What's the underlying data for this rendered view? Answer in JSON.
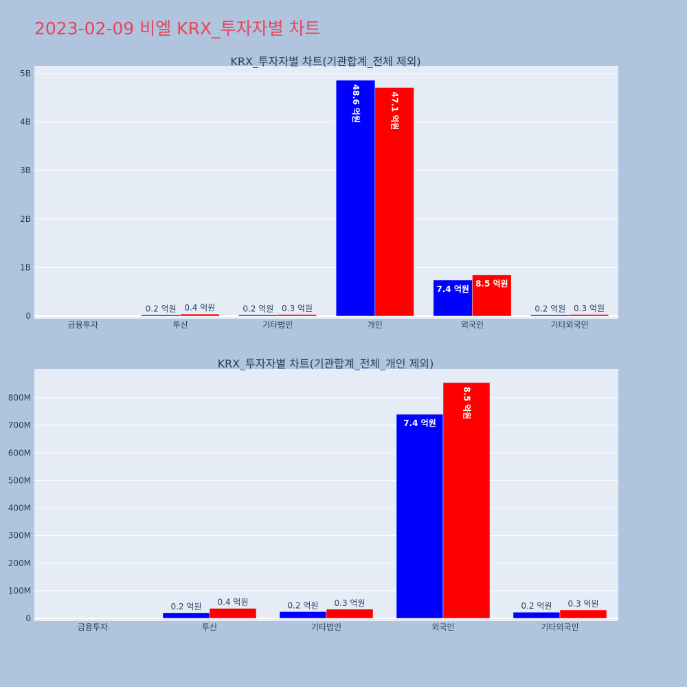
{
  "page": {
    "title": "2023-02-09 비엘 KRX_투자자별 차트"
  },
  "colors": {
    "background": "#b0c4de",
    "plot_background": "#e5ecf6",
    "title": "#e8445a",
    "series_buy": "#0000ff",
    "series_sell": "#ff0000"
  },
  "chart_data": [
    {
      "type": "bar",
      "title": "KRX_투자자별 차트(기관합계_전체 제외)",
      "categories": [
        "금융투자",
        "투신",
        "기타법인",
        "개인",
        "외국인",
        "기타외국인"
      ],
      "series": [
        {
          "color": "#0000ff",
          "values": [
            0,
            20000000,
            20000000,
            4860000000,
            740000000,
            20000000
          ],
          "labels": [
            "",
            "0.2 억원",
            "0.2 억원",
            "48.6 억원",
            "7.4 억원",
            "0.2 억원"
          ]
        },
        {
          "color": "#ff0000",
          "values": [
            0,
            40000000,
            30000000,
            4710000000,
            850000000,
            30000000
          ],
          "labels": [
            "",
            "0.4 억원",
            "0.3 억원",
            "47.1 억원",
            "8.5 억원",
            "0.3 억원"
          ]
        }
      ],
      "yticks": [
        0,
        1000000000,
        2000000000,
        3000000000,
        4000000000,
        5000000000
      ],
      "ytick_labels": [
        "0",
        "1B",
        "2B",
        "3B",
        "4B",
        "5B"
      ],
      "ylim": [
        0,
        5000000000
      ],
      "grid": true,
      "legend": "none"
    },
    {
      "type": "bar",
      "title": "KRX_투자자별 차트(기관합계_전체_개인 제외)",
      "categories": [
        "금융투자",
        "투신",
        "기타법인",
        "외국인",
        "기타외국인"
      ],
      "series": [
        {
          "color": "#0000ff",
          "values": [
            0,
            20000000,
            24000000,
            740000000,
            22000000
          ],
          "labels": [
            "",
            "0.2 억원",
            "0.2 억원",
            "7.4 억원",
            "0.2 억원"
          ]
        },
        {
          "color": "#ff0000",
          "values": [
            0,
            36000000,
            33000000,
            855000000,
            30000000
          ],
          "labels": [
            "",
            "0.4 억원",
            "0.3 억원",
            "8.5 억원",
            "0.3 억원"
          ]
        }
      ],
      "yticks": [
        0,
        100000000,
        200000000,
        300000000,
        400000000,
        500000000,
        600000000,
        700000000,
        800000000
      ],
      "ytick_labels": [
        "0",
        "100M",
        "200M",
        "300M",
        "400M",
        "500M",
        "600M",
        "700M",
        "800M"
      ],
      "ylim": [
        0,
        900000000
      ],
      "grid": true,
      "legend": "none"
    }
  ]
}
